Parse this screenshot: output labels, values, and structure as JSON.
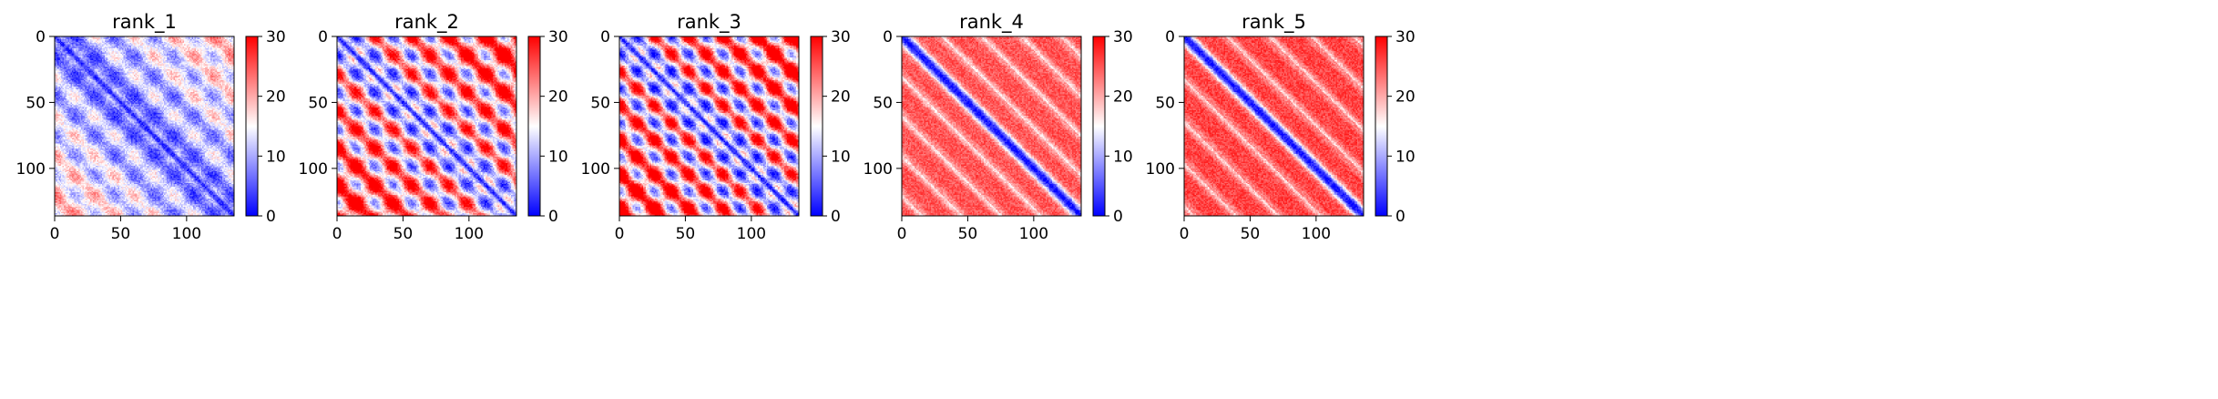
{
  "chart_data": [
    {
      "type": "heatmap",
      "title": "rank_1",
      "size": 136,
      "xticks": [
        0,
        50,
        100
      ],
      "yticks": [
        0,
        50,
        100
      ],
      "colorbar": {
        "min": 0,
        "max": 30,
        "ticks": [
          0,
          10,
          20,
          30
        ],
        "colormap": "bwr",
        "center": 15
      },
      "pattern": {
        "kind": "periodic",
        "period": 30,
        "phase": 0,
        "offset": 8,
        "band_width": 1.5,
        "diag_value": 2,
        "amplitude": 4,
        "noise": 3
      }
    },
    {
      "type": "heatmap",
      "title": "rank_2",
      "size": 136,
      "xticks": [
        0,
        50,
        100
      ],
      "yticks": [
        0,
        50,
        100
      ],
      "colorbar": {
        "min": 0,
        "max": 30,
        "ticks": [
          0,
          10,
          20,
          30
        ],
        "colormap": "bwr",
        "center": 15
      },
      "pattern": {
        "kind": "periodic",
        "period": 28,
        "phase": 14,
        "offset": 15,
        "band_width": 2,
        "diag_value": 2,
        "amplitude": 9,
        "noise": 3
      }
    },
    {
      "type": "heatmap",
      "title": "rank_3",
      "size": 136,
      "xticks": [
        0,
        50,
        100
      ],
      "yticks": [
        0,
        50,
        100
      ],
      "colorbar": {
        "min": 0,
        "max": 30,
        "ticks": [
          0,
          10,
          20,
          30
        ],
        "colormap": "bwr",
        "center": 15
      },
      "pattern": {
        "kind": "periodic",
        "period": 26,
        "phase": 13,
        "offset": 15,
        "band_width": 2,
        "diag_value": 2,
        "amplitude": 10,
        "noise": 3
      }
    },
    {
      "type": "heatmap",
      "title": "rank_4",
      "size": 136,
      "xticks": [
        0,
        50,
        100
      ],
      "yticks": [
        0,
        50,
        100
      ],
      "colorbar": {
        "min": 0,
        "max": 30,
        "ticks": [
          0,
          10,
          20,
          30
        ],
        "colormap": "bwr",
        "center": 15
      },
      "pattern": {
        "kind": "band",
        "period": 30,
        "phase": 0,
        "offset": 25,
        "band_width": 3,
        "diag_value": 1,
        "amplitude": 5,
        "noise": 2.5
      }
    },
    {
      "type": "heatmap",
      "title": "rank_5",
      "size": 136,
      "xticks": [
        0,
        50,
        100
      ],
      "yticks": [
        0,
        50,
        100
      ],
      "colorbar": {
        "min": 0,
        "max": 30,
        "ticks": [
          0,
          10,
          20,
          30
        ],
        "colormap": "bwr",
        "center": 15
      },
      "pattern": {
        "kind": "band",
        "period": 32,
        "phase": 0,
        "offset": 26,
        "band_width": 3,
        "diag_value": 1,
        "amplitude": 5,
        "noise": 2.5
      }
    }
  ]
}
